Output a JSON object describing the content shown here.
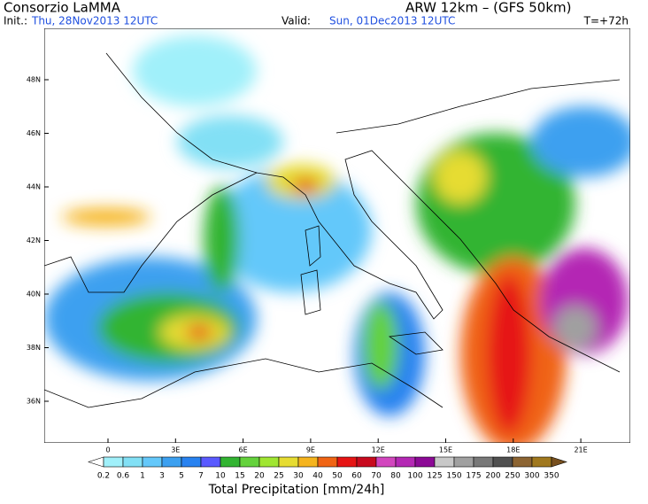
{
  "header": {
    "title": "Consorzio LaMMA",
    "model": "ARW 12km – (GFS 50km)",
    "init_label": "Init.:",
    "init_value": "Thu, 28Nov2013 12UTC",
    "valid_label": "Valid:",
    "valid_value": "Sun, 01Dec2013 12UTC",
    "lead": "T=+72h"
  },
  "map": {
    "lat_labels": [
      "48N",
      "46N",
      "44N",
      "42N",
      "40N",
      "38N",
      "36N"
    ],
    "lon_labels": [
      "0",
      "3E",
      "6E",
      "9E",
      "12E",
      "15E",
      "18E",
      "21E"
    ]
  },
  "colorbar": {
    "title": "Total Precipitation [mm/24h]",
    "levels": [
      0.2,
      0.6,
      1,
      3,
      5,
      7,
      10,
      15,
      20,
      25,
      30,
      40,
      50,
      60,
      70,
      80,
      100,
      125,
      150,
      175,
      200,
      250,
      300,
      350
    ],
    "under_color": "#ffffff",
    "colors": [
      "#a0f0fa",
      "#82e0f5",
      "#64c8fa",
      "#3ca0f0",
      "#2882f0",
      "#5a5aff",
      "#32b432",
      "#64d23c",
      "#a0e632",
      "#e6dc32",
      "#f5b41e",
      "#f06414",
      "#e61414",
      "#c80a1e",
      "#d246be",
      "#b428b4",
      "#8c0a96",
      "#c8c8c8",
      "#a0a0a0",
      "#787878",
      "#505050",
      "#8c6432",
      "#a0781e"
    ],
    "over_color": "#78501e"
  }
}
